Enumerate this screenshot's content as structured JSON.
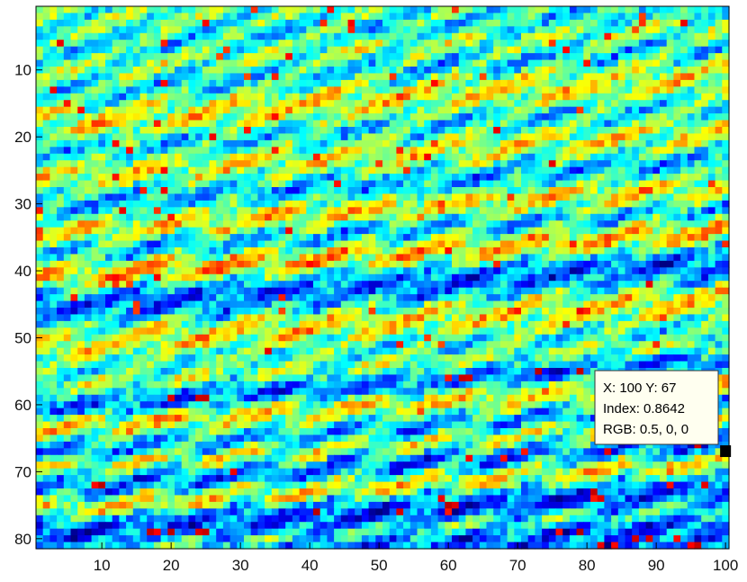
{
  "chart_data": {
    "type": "heatmap",
    "title": "",
    "xlabel": "",
    "ylabel": "",
    "x_range": [
      1,
      100
    ],
    "y_range": [
      1,
      81
    ],
    "y_reversed": true,
    "colormap": "jet",
    "color_range": [
      0,
      1
    ],
    "x_ticks": [
      10,
      20,
      30,
      40,
      50,
      60,
      70,
      80,
      90,
      100
    ],
    "y_ticks": [
      10,
      20,
      30,
      40,
      50,
      60,
      70,
      80
    ],
    "grid": false,
    "datatip": {
      "x": 100,
      "y": 67,
      "index": 0.8642,
      "rgb": "0.5, 0, 0",
      "line1": "X: 100 Y: 67",
      "line2": "Index: 0.8642",
      "line3": "RGB: 0.5, 0, 0"
    },
    "row_pattern": {
      "description": "approximate per-row mean index levels of the banded field (rows 1-81)",
      "row_levels": [
        0.45,
        0.42,
        0.4,
        0.38,
        0.42,
        0.47,
        0.5,
        0.46,
        0.4,
        0.36,
        0.4,
        0.48,
        0.55,
        0.58,
        0.6,
        0.55,
        0.48,
        0.4,
        0.36,
        0.42,
        0.5,
        0.56,
        0.58,
        0.52,
        0.46,
        0.38,
        0.32,
        0.36,
        0.46,
        0.58,
        0.62,
        0.56,
        0.44,
        0.34,
        0.38,
        0.52,
        0.64,
        0.66,
        0.56,
        0.4,
        0.28,
        0.22,
        0.24,
        0.3,
        0.4,
        0.52,
        0.6,
        0.62,
        0.58,
        0.5,
        0.44,
        0.4,
        0.46,
        0.52,
        0.44,
        0.3,
        0.24,
        0.3,
        0.5,
        0.62,
        0.58,
        0.46,
        0.34,
        0.3,
        0.42,
        0.55,
        0.48,
        0.34,
        0.26,
        0.3,
        0.46,
        0.6,
        0.56,
        0.38,
        0.24,
        0.18,
        0.22,
        0.34,
        0.42,
        0.3,
        0.22
      ]
    },
    "colors": {
      "jet_dark_red": "#800000",
      "tooltip_bg": "#fffff0",
      "marker": "#000000"
    }
  }
}
